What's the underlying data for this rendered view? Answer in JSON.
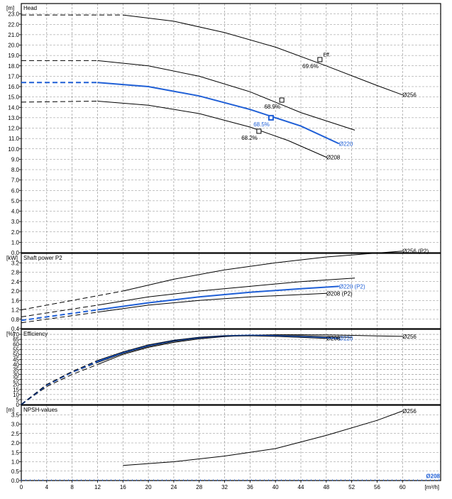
{
  "chart_data": [
    {
      "type": "line",
      "title": "Head",
      "unit": "[m]",
      "ylim": [
        0,
        24
      ],
      "yticks": [
        0.0,
        1.0,
        2.0,
        3.0,
        4.0,
        5.0,
        6.0,
        7.0,
        8.0,
        9.0,
        10.0,
        11.0,
        12.0,
        13.0,
        14.0,
        15.0,
        16.0,
        17.0,
        18.0,
        19.0,
        20.0,
        21.0,
        22.0,
        23.0
      ],
      "series": [
        {
          "name": "Ø256",
          "color": "#000000",
          "dashed": [
            [
              0,
              22.9
            ],
            [
              16,
              22.9
            ]
          ],
          "solid": [
            [
              16,
              22.9
            ],
            [
              24,
              22.3
            ],
            [
              32,
              21.2
            ],
            [
              40,
              19.8
            ],
            [
              48,
              18.0
            ],
            [
              56,
              16.1
            ],
            [
              60,
              15.2
            ]
          ]
        },
        {
          "name": "",
          "color": "#000000",
          "dashed": [
            [
              0,
              18.5
            ],
            [
              12,
              18.5
            ]
          ],
          "solid": [
            [
              12,
              18.5
            ],
            [
              20,
              18.0
            ],
            [
              28,
              17.0
            ],
            [
              36,
              15.5
            ],
            [
              44,
              13.5
            ],
            [
              52.5,
              11.8
            ]
          ]
        },
        {
          "name": "Ø220",
          "color": "#1f5fd6",
          "width": 2,
          "dashed": [
            [
              0,
              16.4
            ],
            [
              12,
              16.4
            ]
          ],
          "solid": [
            [
              12,
              16.4
            ],
            [
              20,
              16.0
            ],
            [
              28,
              15.1
            ],
            [
              36,
              13.8
            ],
            [
              44,
              12.2
            ],
            [
              50,
              10.5
            ]
          ]
        },
        {
          "name": "Ø208",
          "color": "#000000",
          "dashed": [
            [
              0,
              14.5
            ],
            [
              12,
              14.6
            ]
          ],
          "solid": [
            [
              12,
              14.6
            ],
            [
              20,
              14.2
            ],
            [
              28,
              13.4
            ],
            [
              36,
              12.1
            ],
            [
              42,
              10.8
            ],
            [
              48,
              9.2
            ]
          ]
        }
      ],
      "markers": [
        {
          "x": 47.0,
          "y": 18.6,
          "label": "69.6%",
          "color": "#000000"
        },
        {
          "x": 41.0,
          "y": 14.7,
          "label": "68.9%",
          "color": "#000000"
        },
        {
          "x": 39.3,
          "y": 13.0,
          "label": "68.5%",
          "color": "#1f5fd6"
        },
        {
          "x": 37.4,
          "y": 11.7,
          "label": "68.2%",
          "color": "#000000"
        }
      ],
      "annotations": [
        {
          "text": "Eff.",
          "x": 47.5,
          "y": 18.9
        }
      ]
    },
    {
      "type": "line",
      "title": "Shaft power P2",
      "unit": "[kW]",
      "ylim": [
        0.4,
        3.6
      ],
      "yticks": [
        0.4,
        0.8,
        1.2,
        1.6,
        2.0,
        2.4,
        2.8,
        3.2
      ],
      "series": [
        {
          "name": "Ø256 (P2)",
          "color": "#000000",
          "dashed": [
            [
              0,
              1.2
            ],
            [
              16,
              2.0
            ]
          ],
          "solid": [
            [
              16,
              2.0
            ],
            [
              24,
              2.5
            ],
            [
              32,
              2.9
            ],
            [
              40,
              3.2
            ],
            [
              48,
              3.45
            ],
            [
              60,
              3.7
            ]
          ]
        },
        {
          "name": "",
          "color": "#000000",
          "dashed": [
            [
              0,
              0.9
            ],
            [
              12,
              1.4
            ]
          ],
          "solid": [
            [
              12,
              1.4
            ],
            [
              20,
              1.75
            ],
            [
              28,
              2.0
            ],
            [
              36,
              2.2
            ],
            [
              44,
              2.4
            ],
            [
              52.5,
              2.55
            ]
          ]
        },
        {
          "name": "Ø220 (P2)",
          "color": "#1f5fd6",
          "width": 2,
          "dashed": [
            [
              0,
              0.75
            ],
            [
              12,
              1.2
            ]
          ],
          "solid": [
            [
              12,
              1.2
            ],
            [
              20,
              1.5
            ],
            [
              28,
              1.75
            ],
            [
              36,
              1.95
            ],
            [
              44,
              2.1
            ],
            [
              50,
              2.2
            ]
          ]
        },
        {
          "name": "Ø208 (P2)",
          "color": "#000000",
          "dashed": [
            [
              0,
              0.65
            ],
            [
              12,
              1.1
            ]
          ],
          "solid": [
            [
              12,
              1.1
            ],
            [
              20,
              1.4
            ],
            [
              28,
              1.6
            ],
            [
              36,
              1.75
            ],
            [
              44,
              1.85
            ],
            [
              48,
              1.9
            ]
          ]
        }
      ]
    },
    {
      "type": "line",
      "title": "Efficiency",
      "unit": "[%]",
      "ylim": [
        0,
        75
      ],
      "yticks": [
        0,
        5,
        10,
        15,
        20,
        25,
        30,
        35,
        40,
        45,
        50,
        55,
        60,
        65,
        70
      ],
      "series": [
        {
          "name": "Ø256",
          "color": "#000000",
          "dashed": [
            [
              0,
              0
            ],
            [
              4,
              18
            ],
            [
              8,
              30
            ],
            [
              12,
              40
            ]
          ],
          "solid": [
            [
              12,
              40
            ],
            [
              16,
              50
            ],
            [
              20,
              57
            ],
            [
              24,
              62
            ],
            [
              28,
              65.5
            ],
            [
              32,
              67.8
            ],
            [
              36,
              69.2
            ],
            [
              40,
              69.6
            ],
            [
              44,
              69.6
            ],
            [
              48,
              69.4
            ],
            [
              52,
              69
            ],
            [
              56,
              68.5
            ],
            [
              60,
              68
            ]
          ]
        },
        {
          "name": "",
          "color": "#000000",
          "dashed": [
            [
              0,
              0
            ],
            [
              4,
              19
            ],
            [
              8,
              32
            ],
            [
              12,
              42
            ]
          ],
          "solid": [
            [
              12,
              42
            ],
            [
              16,
              51
            ],
            [
              20,
              58
            ],
            [
              24,
              63
            ],
            [
              28,
              66.2
            ],
            [
              32,
              68.2
            ],
            [
              36,
              69.1
            ],
            [
              40,
              69.0
            ],
            [
              44,
              68.6
            ],
            [
              48,
              67.8
            ],
            [
              52,
              67
            ]
          ]
        },
        {
          "name": "Ø220",
          "color": "#1f5fd6",
          "width": 2,
          "dashed": [
            [
              0,
              0
            ],
            [
              4,
              19.5
            ],
            [
              8,
              32.5
            ],
            [
              12,
              43
            ]
          ],
          "solid": [
            [
              12,
              43
            ],
            [
              16,
              52
            ],
            [
              20,
              59
            ],
            [
              24,
              63.8
            ],
            [
              28,
              66.8
            ],
            [
              32,
              68.5
            ],
            [
              36,
              69.0
            ],
            [
              40,
              68.5
            ],
            [
              44,
              67.5
            ],
            [
              48,
              66.5
            ],
            [
              50,
              66
            ]
          ]
        },
        {
          "name": "Ø208",
          "color": "#000000",
          "dashed": [
            [
              0,
              0
            ],
            [
              4,
              20
            ],
            [
              8,
              33
            ],
            [
              12,
              44
            ]
          ],
          "solid": [
            [
              12,
              44
            ],
            [
              16,
              52.5
            ],
            [
              20,
              59.5
            ],
            [
              24,
              64
            ],
            [
              28,
              67
            ],
            [
              32,
              68.4
            ],
            [
              36,
              68.6
            ],
            [
              40,
              68
            ],
            [
              44,
              67
            ],
            [
              48,
              66
            ]
          ]
        }
      ]
    },
    {
      "type": "line",
      "title": "NPSH-values",
      "unit": "[m]",
      "ylim": [
        0,
        4
      ],
      "yticks": [
        0.0,
        0.5,
        1.0,
        1.5,
        2.0,
        2.5,
        3.0,
        3.5
      ],
      "series": [
        {
          "name": "Ø256",
          "color": "#000000",
          "solid": [
            [
              16,
              0.8
            ],
            [
              24,
              1.0
            ],
            [
              32,
              1.3
            ],
            [
              40,
              1.7
            ],
            [
              48,
              2.4
            ],
            [
              56,
              3.2
            ],
            [
              60,
              3.7
            ]
          ]
        },
        {
          "name": "Ø208",
          "color": "#1f5fd6",
          "width": 2,
          "dotted": true,
          "solid": [
            [
              0,
              0.02
            ],
            [
              66,
              0.02
            ]
          ]
        }
      ]
    }
  ],
  "x_axis": {
    "unit": "[m³/h]",
    "range": [
      0,
      66
    ],
    "ticks": [
      0,
      4,
      8,
      12,
      16,
      20,
      24,
      28,
      32,
      36,
      40,
      44,
      48,
      52,
      56,
      60
    ]
  }
}
